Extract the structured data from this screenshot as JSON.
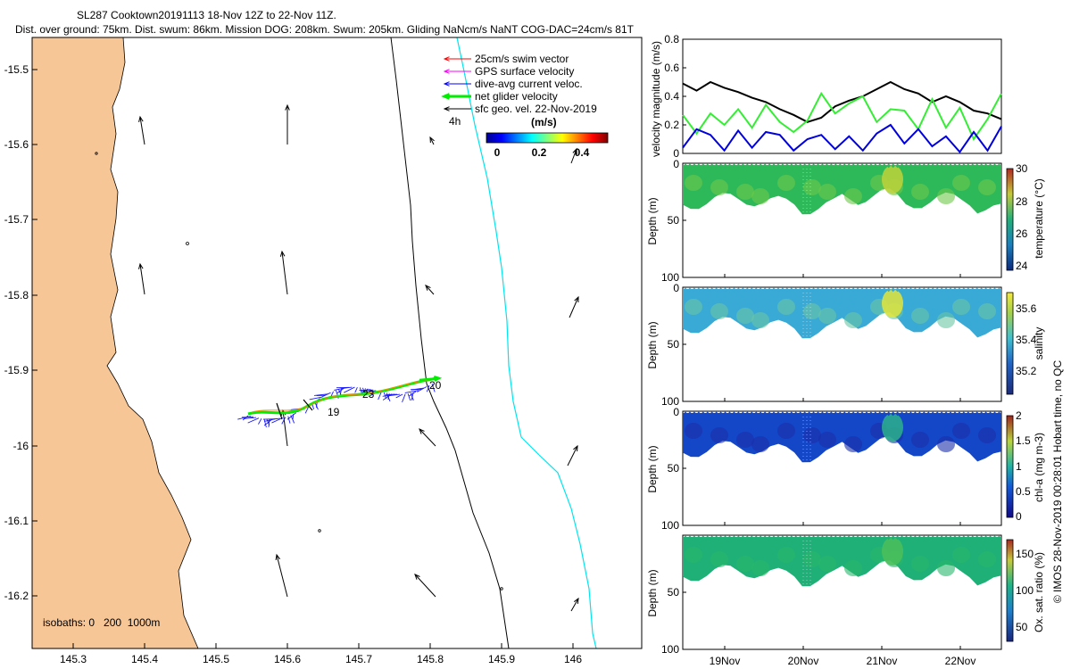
{
  "header": {
    "line1": "SL287 Cooktown20191113 18-Nov 12Z to 22-Nov 11Z.",
    "line2": "Dist. over ground: 75km. Dist. swum: 86km. Mission DOG: 208km. Swum: 205km. Gliding NaNcm/s NaNT COG-DAC=24cm/s 81T"
  },
  "map": {
    "legend": [
      {
        "label": "25cm/s swim vector",
        "color": "#ff0000"
      },
      {
        "label": "GPS surface velocity",
        "color": "#ff00ff"
      },
      {
        "label": "dive-avg current veloc.",
        "color": "#0000ff"
      },
      {
        "label": "net glider velocity",
        "color": "#00ee00"
      },
      {
        "label": "sfc geo. vel. 22-Nov-2019",
        "color": "#000000"
      }
    ],
    "legend_extra": "4h",
    "colorbar": {
      "title": "(m/s)",
      "ticks": [
        "0",
        "0.2",
        "0.4"
      ]
    },
    "isobaths_label": "isobaths: 0   200  1000m",
    "track_labels": [
      "20",
      "23",
      "19"
    ],
    "x_ticks": [
      "145.3",
      "145.4",
      "145.5",
      "145.6",
      "145.7",
      "145.8",
      "145.9",
      "146"
    ],
    "y_ticks": [
      "-15.5",
      "-15.6",
      "-15.7",
      "-15.8",
      "-15.9",
      "-16",
      "-16.1",
      "-16.2"
    ],
    "land_color": "#f7c697",
    "coast_color": "#000000",
    "isobath_1000_color": "#00e5ee"
  },
  "chart_data": [
    {
      "type": "line",
      "title": "",
      "ylabel": "velocity magnitude (m/s)",
      "ylim": [
        0,
        0.8
      ],
      "y_ticks": [
        "0",
        "0.2",
        "0.4",
        "0.6",
        "0.8"
      ],
      "x_ticks": [
        "19Nov",
        "20Nov",
        "21Nov",
        "22Nov"
      ],
      "series": [
        {
          "name": "sfc geo. vel.",
          "color": "#000000",
          "values": [
            0.49,
            0.44,
            0.5,
            0.46,
            0.43,
            0.39,
            0.36,
            0.31,
            0.27,
            0.22,
            0.25,
            0.33,
            0.37,
            0.4,
            0.45,
            0.5,
            0.45,
            0.42,
            0.36,
            0.4,
            0.36,
            0.3,
            0.28,
            0.24
          ]
        },
        {
          "name": "net glider velocity",
          "color": "#33ee33",
          "values": [
            0.27,
            0.14,
            0.28,
            0.2,
            0.31,
            0.18,
            0.34,
            0.22,
            0.15,
            0.23,
            0.42,
            0.28,
            0.35,
            0.4,
            0.22,
            0.31,
            0.3,
            0.17,
            0.38,
            0.18,
            0.32,
            0.1,
            0.24,
            0.42
          ]
        },
        {
          "name": "dive-avg current",
          "color": "#0000dd",
          "values": [
            0.04,
            0.17,
            0.13,
            0.02,
            0.16,
            0.04,
            0.15,
            0.13,
            0.02,
            0.1,
            0.13,
            0.03,
            0.12,
            0.02,
            0.14,
            0.2,
            0.07,
            0.17,
            0.05,
            0.12,
            0.01,
            0.15,
            0.02,
            0.19
          ]
        }
      ]
    },
    {
      "type": "heatmap",
      "ylabel": "Depth (m)",
      "y_ticks": [
        "0",
        "50",
        "100"
      ],
      "cbar_label": "temperature (°C)",
      "cbar_ticks": [
        "30",
        "28",
        "26",
        "24"
      ],
      "range": [
        23.5,
        30
      ]
    },
    {
      "type": "heatmap",
      "ylabel": "Depth (m)",
      "y_ticks": [
        "0",
        "50",
        "100"
      ],
      "cbar_label": "salinity",
      "cbar_ticks": [
        "35.6",
        "35.4",
        "35.2"
      ],
      "range": [
        35.1,
        35.7
      ]
    },
    {
      "type": "heatmap",
      "ylabel": "Depth (m)",
      "y_ticks": [
        "0",
        "50",
        "100"
      ],
      "cbar_label": "chl-a (mg m-3)",
      "cbar_ticks": [
        "2",
        "1.5",
        "1",
        "0.5",
        "0"
      ],
      "range": [
        0,
        2
      ]
    },
    {
      "type": "heatmap",
      "ylabel": "Depth (m)",
      "y_ticks": [
        "0",
        "50",
        "100"
      ],
      "cbar_label": "Ox. sat. ratio (%)",
      "cbar_ticks": [
        "150",
        "100",
        "50"
      ],
      "range": [
        30,
        170
      ],
      "x_ticks": [
        "19Nov",
        "20Nov",
        "21Nov",
        "22Nov"
      ]
    }
  ],
  "footer": "© IMOS 28-Nov-2019 00:28:01 Hobart time, no QC"
}
